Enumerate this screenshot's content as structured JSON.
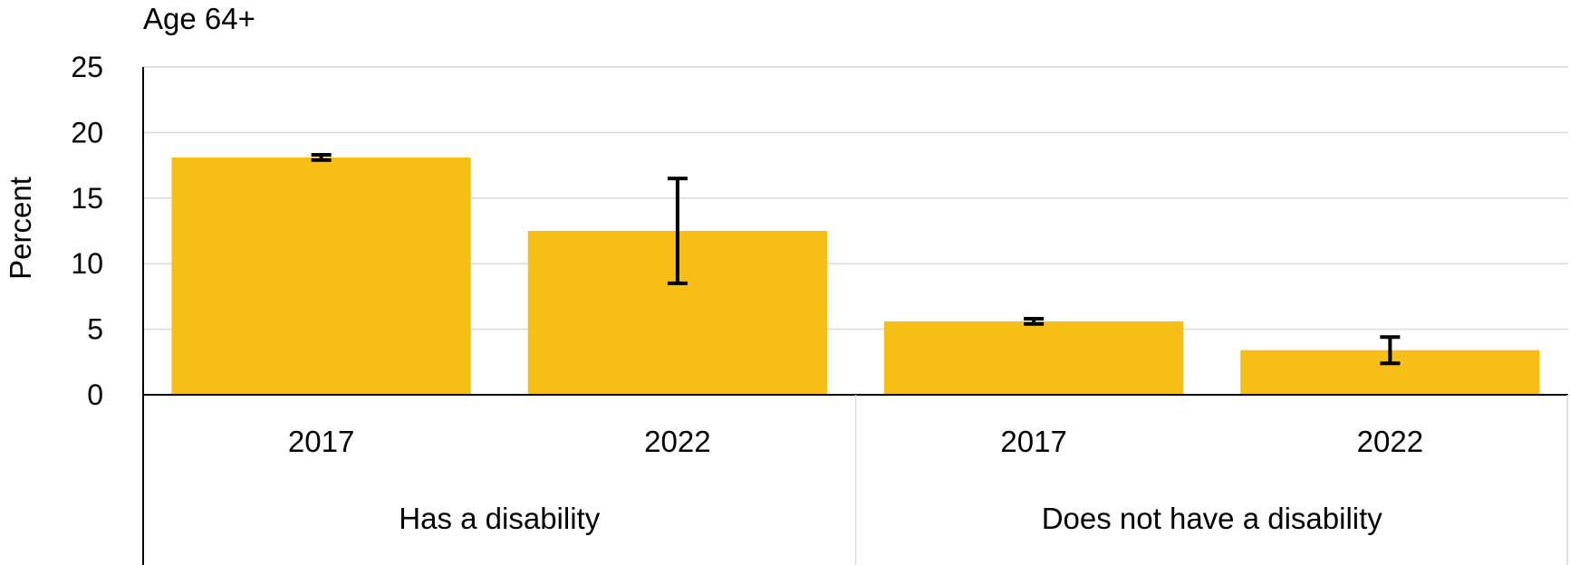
{
  "chart_data": {
    "type": "bar",
    "title": "Age 64+",
    "ylabel": "Percent",
    "ylim": [
      0,
      25
    ],
    "yticks": [
      0,
      5,
      10,
      15,
      20,
      25
    ],
    "grid": true,
    "groups": [
      {
        "label": "Has a disability",
        "categories": [
          "2017",
          "2022"
        ]
      },
      {
        "label": "Does not have a disability",
        "categories": [
          "2017",
          "2022"
        ]
      }
    ],
    "categories": [
      "2017",
      "2022",
      "2017",
      "2022"
    ],
    "values": [
      18.1,
      12.5,
      5.6,
      3.4
    ],
    "error_low": [
      17.9,
      8.5,
      5.4,
      2.4
    ],
    "error_high": [
      18.3,
      16.5,
      5.8,
      4.4
    ],
    "colors": {
      "bar": "#F7BE16",
      "error": "#000000",
      "grid": "#D9D9D9",
      "axis": "#000000"
    }
  }
}
